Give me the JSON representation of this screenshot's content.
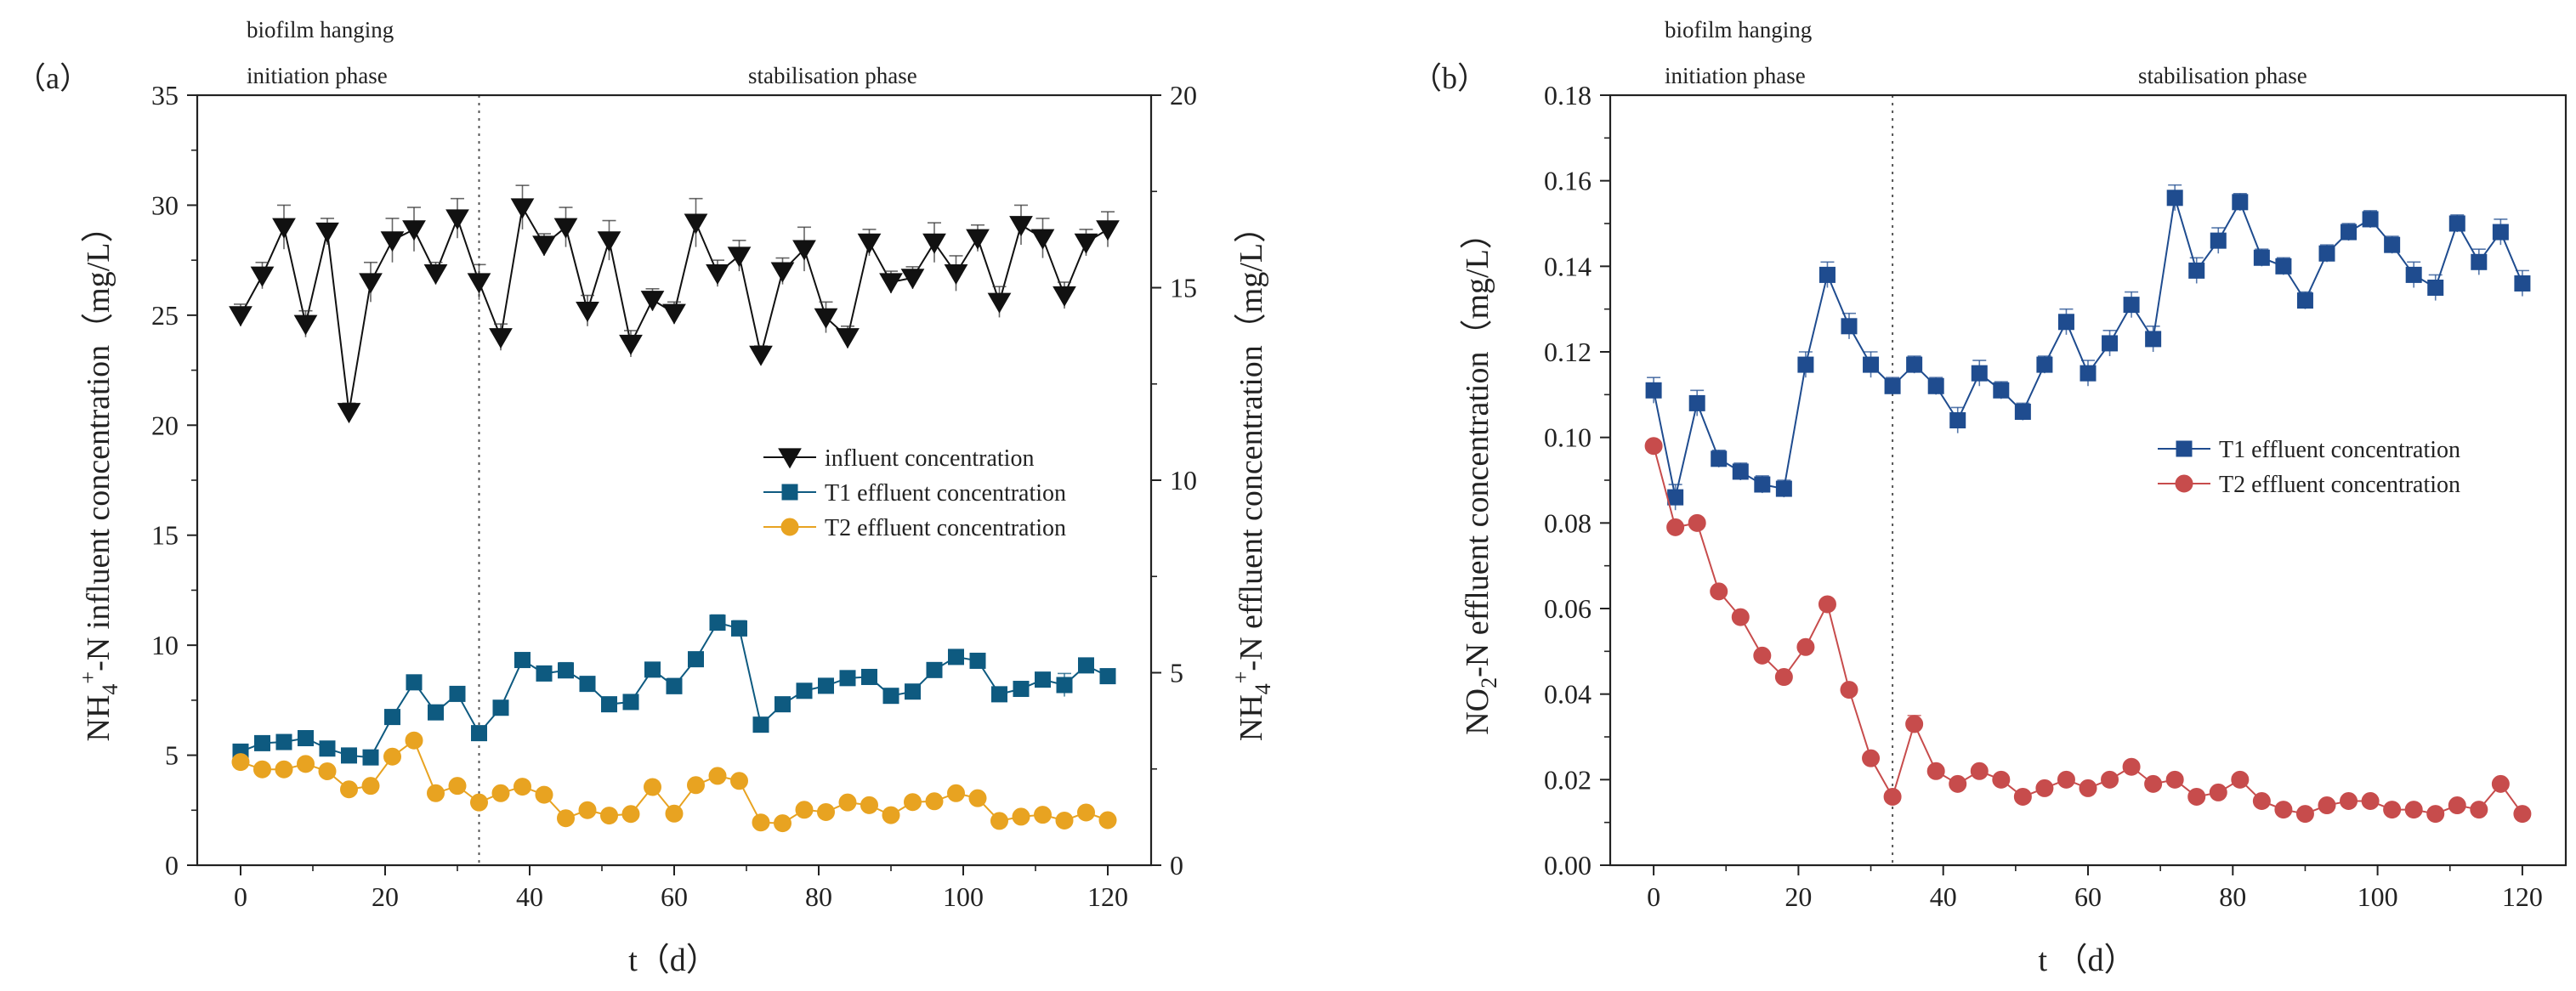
{
  "chart_data": [
    {
      "panel_label": "（a）",
      "type": "line",
      "xlabel": "t（d）",
      "ylabel_left_parts": [
        "NH",
        "4",
        "+",
        "-N influent concentration（mg/L）"
      ],
      "ylabel_right_parts": [
        "NH",
        "4",
        "+",
        "-N effluent concentration（mg/L）"
      ],
      "phase_labels": {
        "line1": "biofilm hanging",
        "left": "initiation phase",
        "right": "stabilisation phase",
        "divider_x": 33
      },
      "x": {
        "range": [
          -6,
          126
        ],
        "ticks": [
          0,
          20,
          40,
          60,
          80,
          100,
          120
        ]
      },
      "y_left": {
        "range": [
          0,
          35
        ],
        "ticks": [
          0,
          5,
          10,
          15,
          20,
          25,
          30,
          35
        ]
      },
      "y_right": {
        "range": [
          0,
          20
        ],
        "ticks": [
          0,
          5,
          10,
          15,
          20
        ]
      },
      "series": [
        {
          "name": "influent concentration",
          "axis": "left",
          "marker": "triangle-down",
          "color": "#111111",
          "x": [
            0,
            3,
            6,
            9,
            12,
            15,
            18,
            21,
            24,
            27,
            30,
            33,
            36,
            39,
            42,
            45,
            48,
            51,
            54,
            57,
            60,
            63,
            66,
            69,
            72,
            75,
            78,
            81,
            84,
            87,
            90,
            93,
            96,
            99,
            102,
            105,
            108,
            111,
            114,
            117,
            120
          ],
          "y": [
            25.0,
            26.8,
            29.0,
            24.6,
            28.8,
            20.6,
            26.5,
            28.4,
            28.9,
            26.9,
            29.4,
            26.5,
            24.0,
            29.9,
            28.2,
            29.0,
            25.2,
            28.4,
            23.7,
            25.7,
            25.1,
            29.2,
            26.9,
            27.7,
            23.2,
            27.0,
            28.0,
            24.9,
            24.0,
            28.3,
            26.5,
            26.7,
            28.3,
            26.9,
            28.5,
            25.6,
            29.1,
            28.5,
            25.9,
            28.3,
            28.9
          ],
          "err": [
            0.5,
            0.6,
            1.0,
            0.6,
            0.6,
            0.4,
            0.9,
            1.0,
            1.0,
            0.5,
            0.9,
            0.8,
            0.6,
            1.0,
            0.5,
            0.9,
            0.7,
            0.9,
            0.6,
            0.5,
            0.5,
            1.1,
            0.6,
            0.7,
            0.4,
            0.6,
            1.0,
            0.7,
            0.5,
            0.6,
            0.5,
            0.5,
            0.9,
            0.8,
            0.6,
            0.7,
            0.9,
            0.9,
            0.6,
            0.6,
            0.8
          ]
        },
        {
          "name": "T1 effluent concentration",
          "axis": "right",
          "marker": "square",
          "color": "#0e5a80",
          "x": [
            0,
            3,
            6,
            9,
            12,
            15,
            18,
            21,
            24,
            27,
            30,
            33,
            36,
            39,
            42,
            45,
            48,
            51,
            54,
            57,
            60,
            63,
            66,
            69,
            72,
            75,
            78,
            81,
            84,
            87,
            90,
            93,
            96,
            99,
            102,
            105,
            108,
            111,
            114,
            117,
            120
          ],
          "y": [
            2.95,
            3.17,
            3.2,
            3.3,
            3.03,
            2.85,
            2.8,
            3.85,
            4.75,
            3.97,
            4.45,
            3.43,
            4.09,
            5.33,
            4.98,
            5.06,
            4.71,
            4.18,
            4.24,
            5.08,
            4.65,
            5.35,
            6.3,
            6.15,
            3.65,
            4.18,
            4.53,
            4.66,
            4.86,
            4.89,
            4.4,
            4.51,
            5.07,
            5.41,
            5.31,
            4.44,
            4.58,
            4.82,
            4.68,
            5.19,
            4.91
          ],
          "err": [
            0.1,
            0.1,
            0.1,
            0.15,
            0.1,
            0.1,
            0.1,
            0.1,
            0.15,
            0.1,
            0.15,
            0.15,
            0.1,
            0.1,
            0.1,
            0.2,
            0.1,
            0.1,
            0.15,
            0.1,
            0.2,
            0.1,
            0.2,
            0.2,
            0.1,
            0.1,
            0.1,
            0.1,
            0.1,
            0.1,
            0.1,
            0.1,
            0.1,
            0.1,
            0.1,
            0.1,
            0.1,
            0.15,
            0.3,
            0.1,
            0.15
          ]
        },
        {
          "name": "T2 effluent concentration",
          "axis": "right",
          "marker": "circle",
          "color": "#e8a321",
          "x": [
            0,
            3,
            6,
            9,
            12,
            15,
            18,
            21,
            24,
            27,
            30,
            33,
            36,
            39,
            42,
            45,
            48,
            51,
            54,
            57,
            60,
            63,
            66,
            69,
            72,
            75,
            78,
            81,
            84,
            87,
            90,
            93,
            96,
            99,
            102,
            105,
            108,
            111,
            114,
            117,
            120
          ],
          "y": [
            2.68,
            2.49,
            2.49,
            2.63,
            2.44,
            1.97,
            2.06,
            2.82,
            3.24,
            1.87,
            2.06,
            1.63,
            1.87,
            2.04,
            1.83,
            1.22,
            1.43,
            1.29,
            1.33,
            2.03,
            1.34,
            2.08,
            2.32,
            2.19,
            1.11,
            1.09,
            1.44,
            1.38,
            1.63,
            1.56,
            1.3,
            1.64,
            1.66,
            1.87,
            1.74,
            1.15,
            1.26,
            1.31,
            1.16,
            1.37,
            1.17
          ],
          "err": [
            0.05,
            0.05,
            0.05,
            0.05,
            0.05,
            0.05,
            0.05,
            0.05,
            0.05,
            0.05,
            0.05,
            0.05,
            0.05,
            0.05,
            0.05,
            0.05,
            0.05,
            0.05,
            0.05,
            0.15,
            0.05,
            0.05,
            0.1,
            0.1,
            0.05,
            0.05,
            0.05,
            0.05,
            0.05,
            0.05,
            0.05,
            0.05,
            0.05,
            0.05,
            0.05,
            0.05,
            0.05,
            0.05,
            0.05,
            0.05,
            0.05
          ]
        }
      ],
      "legend": "center-right"
    },
    {
      "panel_label": "（b）",
      "type": "line",
      "xlabel": "t （d）",
      "ylabel_parts": [
        "NO",
        "2",
        "-N effluent concentration（mg/L）"
      ],
      "phase_labels": {
        "line1": "biofilm hanging",
        "left": "initiation phase",
        "right": "stabilisation phase",
        "divider_x": 33
      },
      "x": {
        "range": [
          -6,
          126
        ],
        "ticks": [
          0,
          20,
          40,
          60,
          80,
          100,
          120
        ]
      },
      "y": {
        "range": [
          0,
          0.18
        ],
        "ticks": [
          "0.00",
          "0.02",
          "0.04",
          "0.06",
          "0.08",
          "0.10",
          "0.12",
          "0.14",
          "0.16",
          "0.18"
        ]
      },
      "series": [
        {
          "name": "T1 effluent concentration",
          "marker": "square",
          "color": "#1f4c8f",
          "x": [
            0,
            3,
            6,
            9,
            12,
            15,
            18,
            21,
            24,
            27,
            30,
            33,
            36,
            39,
            42,
            45,
            48,
            51,
            54,
            57,
            60,
            63,
            66,
            69,
            72,
            75,
            78,
            81,
            84,
            87,
            90,
            93,
            96,
            99,
            102,
            105,
            108,
            111,
            114,
            117,
            120
          ],
          "y": [
            0.111,
            0.086,
            0.108,
            0.095,
            0.092,
            0.089,
            0.088,
            0.117,
            0.138,
            0.126,
            0.117,
            0.112,
            0.117,
            0.112,
            0.104,
            0.115,
            0.111,
            0.106,
            0.117,
            0.127,
            0.115,
            0.122,
            0.131,
            0.123,
            0.156,
            0.139,
            0.146,
            0.155,
            0.142,
            0.14,
            0.132,
            0.143,
            0.148,
            0.151,
            0.145,
            0.138,
            0.135,
            0.15,
            0.141,
            0.148,
            0.136
          ],
          "err": [
            0.003,
            0.003,
            0.003,
            0.002,
            0.002,
            0.002,
            0.002,
            0.003,
            0.003,
            0.003,
            0.003,
            0.002,
            0.002,
            0.002,
            0.003,
            0.003,
            0.002,
            0.002,
            0.002,
            0.003,
            0.003,
            0.003,
            0.003,
            0.003,
            0.003,
            0.003,
            0.003,
            0.002,
            0.002,
            0.002,
            0.002,
            0.002,
            0.002,
            0.002,
            0.002,
            0.003,
            0.003,
            0.002,
            0.003,
            0.003,
            0.003
          ]
        },
        {
          "name": "T2 effluent concentration",
          "marker": "circle",
          "color": "#c74c4c",
          "x": [
            0,
            3,
            6,
            9,
            12,
            15,
            18,
            21,
            24,
            27,
            30,
            33,
            36,
            39,
            42,
            45,
            48,
            51,
            54,
            57,
            60,
            63,
            66,
            69,
            72,
            75,
            78,
            81,
            84,
            87,
            90,
            93,
            96,
            99,
            102,
            105,
            108,
            111,
            114,
            117,
            120
          ],
          "y": [
            0.098,
            0.079,
            0.08,
            0.064,
            0.058,
            0.049,
            0.044,
            0.051,
            0.061,
            0.041,
            0.025,
            0.016,
            0.033,
            0.022,
            0.019,
            0.022,
            0.02,
            0.016,
            0.018,
            0.02,
            0.018,
            0.02,
            0.023,
            0.019,
            0.02,
            0.016,
            0.017,
            0.02,
            0.015,
            0.013,
            0.012,
            0.014,
            0.015,
            0.015,
            0.013,
            0.013,
            0.012,
            0.014,
            0.013,
            0.019,
            0.012
          ],
          "err": [
            0.001,
            0.001,
            0.001,
            0.001,
            0.001,
            0.001,
            0.001,
            0.001,
            0.001,
            0.001,
            0.001,
            0.001,
            0.002,
            0.001,
            0.001,
            0.001,
            0.001,
            0.001,
            0.001,
            0.001,
            0.001,
            0.001,
            0.001,
            0.001,
            0.001,
            0.001,
            0.001,
            0.001,
            0.001,
            0.001,
            0.001,
            0.001,
            0.001,
            0.001,
            0.001,
            0.001,
            0.001,
            0.001,
            0.001,
            0.001,
            0.001
          ]
        }
      ],
      "legend": "center-right"
    }
  ]
}
